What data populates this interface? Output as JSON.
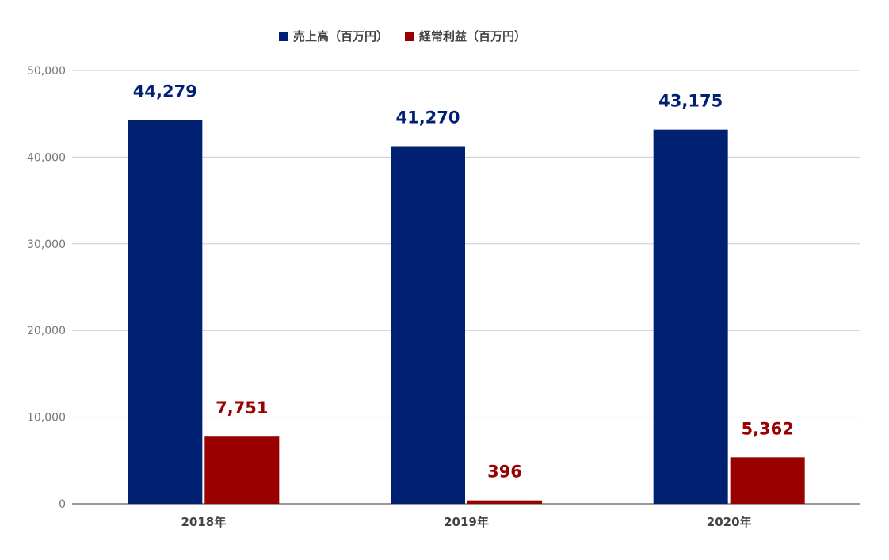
{
  "chart_data": {
    "type": "bar",
    "categories": [
      "2018年",
      "2019年",
      "2020年"
    ],
    "series": [
      {
        "name": "売上高（百万円）",
        "values": [
          44279,
          41270,
          43175
        ],
        "color": "#002072",
        "labels": [
          "44,279",
          "41,270",
          "43,175"
        ]
      },
      {
        "name": "経常利益（百万円）",
        "values": [
          7751,
          396,
          5362
        ],
        "color": "#990000",
        "labels": [
          "7,751",
          "396",
          "5,362"
        ]
      }
    ],
    "ylim": [
      0,
      50000
    ],
    "yticks": [
      0,
      10000,
      20000,
      30000,
      40000,
      50000
    ],
    "ytick_labels": [
      "0",
      "10,000",
      "20,000",
      "30,000",
      "40,000",
      "50,000"
    ],
    "grid": true,
    "legend_position": "top",
    "title": "",
    "xlabel": "",
    "ylabel": ""
  },
  "colors": {
    "gridline": "#cccccc",
    "axis": "#333333"
  }
}
